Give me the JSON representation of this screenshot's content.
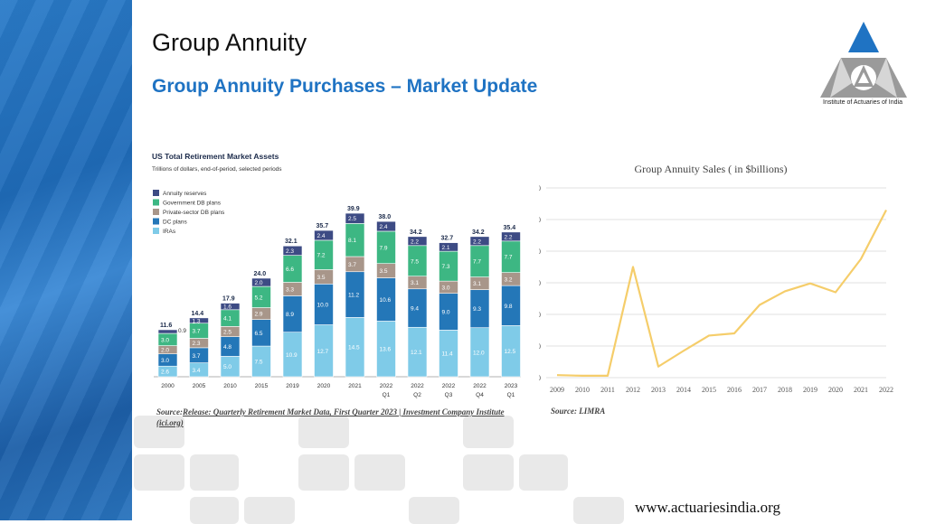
{
  "title": "Group Annuity",
  "subtitle": "Group Annuity Purchases – Market Update",
  "logo_text": "Institute of Actuaries of India",
  "footer_url": "www.actuariesindia.org",
  "left_chart": {
    "title": "US Total Retirement Market Assets",
    "subtitle": "Trillions of dollars, end-of-period, selected periods",
    "source_prefix": "Source:",
    "source_link": "Release: Quarterly Retirement Market Data, First Quarter 2023 | Investment Company Institute (ici.org)"
  },
  "right_chart": {
    "source": "Source: LIMRA"
  },
  "colors": {
    "annuity": "#3d4b84",
    "gov_db": "#3db783",
    "private_db": "#a8968a",
    "dc": "#2477b8",
    "iras": "#7fcbe8",
    "line": "#f5cd6a",
    "title_blue": "#1f73c3"
  },
  "chart_data": [
    {
      "type": "bar",
      "stacked": true,
      "title": "US Total Retirement Market Assets",
      "subtitle": "Trillions of dollars, end-of-period, selected periods",
      "categories": [
        "2000",
        "2005",
        "2010",
        "2015",
        "2019",
        "2020",
        "2021",
        "2022 Q1",
        "2022 Q2",
        "2022 Q3",
        "2022 Q4",
        "2023 Q1"
      ],
      "totals": [
        "11.6",
        "14.4",
        "17.9",
        "24.0",
        "32.1",
        "35.7",
        "39.9",
        "38.0",
        "34.2",
        "32.7",
        "34.2",
        "35.4"
      ],
      "legend_position": "top-left",
      "series": [
        {
          "name": "IRAs",
          "color": "#7fcbe8",
          "values": [
            2.6,
            3.4,
            5.0,
            7.5,
            10.9,
            12.7,
            14.5,
            13.6,
            12.1,
            11.4,
            12.0,
            12.5
          ],
          "labels": [
            "2.6",
            "3.4",
            "5.0",
            "7.5",
            "10.9",
            "12.7",
            "14.5",
            "13.6",
            "12.1",
            "11.4",
            "12.0",
            "12.5"
          ]
        },
        {
          "name": "DC plans",
          "color": "#2477b8",
          "values": [
            3.0,
            3.7,
            4.8,
            6.5,
            8.9,
            10.0,
            11.2,
            10.6,
            9.4,
            9.0,
            9.3,
            9.8
          ],
          "labels": [
            "3.0",
            "3.7",
            "4.8",
            "6.5",
            "8.9",
            "10.0",
            "11.2",
            "10.6",
            "9.4",
            "9.0",
            "9.3",
            "9.8"
          ]
        },
        {
          "name": "Private-sector DB plans",
          "color": "#a8968a",
          "values": [
            2.0,
            2.3,
            2.5,
            2.9,
            3.3,
            3.5,
            3.7,
            3.5,
            3.1,
            3.0,
            3.1,
            3.2
          ],
          "labels": [
            "2.0",
            "2.3",
            "2.5",
            "2.9",
            "3.3",
            "3.5",
            "3.7",
            "3.5",
            "3.1",
            "3.0",
            "3.1",
            "3.2"
          ]
        },
        {
          "name": "Government DB plans",
          "color": "#3db783",
          "values": [
            3.0,
            3.7,
            4.1,
            5.2,
            6.6,
            7.2,
            8.1,
            7.9,
            7.5,
            7.3,
            7.7,
            7.7
          ],
          "labels": [
            "3.0",
            "3.7",
            "4.1",
            "5.2",
            "6.6",
            "7.2",
            "8.1",
            "7.9",
            "7.5",
            "7.3",
            "7.7",
            "7.7"
          ]
        },
        {
          "name": "Annuity reserves",
          "color": "#3d4b84",
          "values": [
            0.9,
            1.3,
            1.6,
            2.0,
            2.3,
            2.4,
            2.5,
            2.4,
            2.2,
            2.1,
            2.2,
            2.2
          ],
          "labels": [
            "0.9",
            "1.3",
            "1.6",
            "2.0",
            "2.3",
            "2.4",
            "2.5",
            "2.4",
            "2.2",
            "2.1",
            "2.2",
            "2.2"
          ]
        }
      ],
      "ylim": [
        0,
        42
      ]
    },
    {
      "type": "line",
      "title": "Group Annuity Sales ( in $billions)",
      "x": [
        "2009",
        "2010",
        "2011",
        "2012",
        "2013",
        "2014",
        "2015",
        "2016",
        "2017",
        "2018",
        "2019",
        "2020",
        "2021",
        "2022"
      ],
      "series": [
        {
          "values": [
            0.8,
            0.6,
            0.6,
            35.0,
            3.5,
            8.5,
            13.3,
            14.0,
            23.0,
            27.3,
            29.8,
            27.0,
            37.5,
            53.0
          ]
        }
      ],
      "ylim": [
        0,
        60
      ],
      "yticks": [
        "0",
        "10",
        "20",
        "30",
        "40",
        "50",
        "60"
      ],
      "grid": true
    }
  ]
}
